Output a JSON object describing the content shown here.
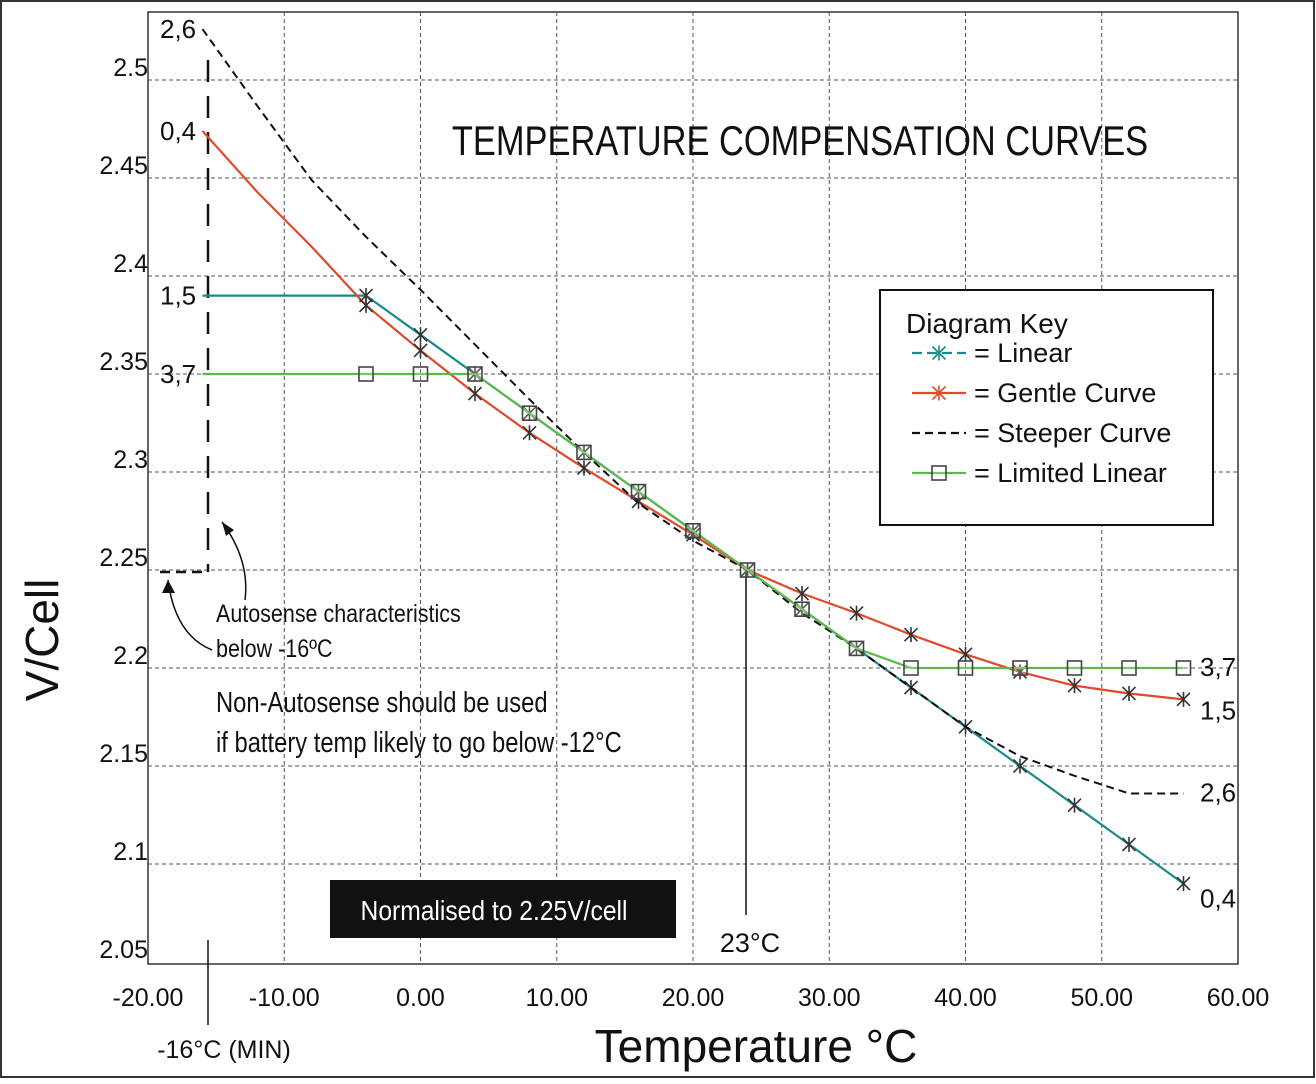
{
  "chart_data": {
    "type": "line",
    "title": "TEMPERATURE COMPENSATION CURVES",
    "xlabel": "Temperature °C",
    "ylabel": "V/Cell",
    "xlim": [
      -20,
      60
    ],
    "ylim": [
      2.05,
      2.52
    ],
    "grid": true,
    "legend_placement": "right",
    "x_ticks": [
      "-20.00",
      "-10.00",
      "0.00",
      "10.00",
      "20.00",
      "30.00",
      "40.00",
      "50.00",
      "60.00"
    ],
    "y_ticks": [
      "2.05",
      "2.1",
      "2.15",
      "2.2",
      "2.25",
      "2.3",
      "2.35",
      "2.4",
      "2.45",
      "2.5"
    ],
    "legend": {
      "title": "Diagram Key",
      "entries": [
        "= Linear",
        "= Gentle Curve",
        "= Steeper Curve",
        "= Limited Linear"
      ]
    },
    "series": [
      {
        "name": "Linear",
        "color": "#1a8a8a",
        "marker": "asterisk",
        "start_label": "1,5",
        "end_label": "0,4",
        "x": [
          -16,
          -4,
          0,
          4,
          8,
          12,
          16,
          20,
          24,
          28,
          32,
          36,
          40,
          44,
          48,
          52,
          56
        ],
        "y": [
          2.39,
          2.39,
          2.37,
          2.35,
          2.33,
          2.31,
          2.29,
          2.27,
          2.25,
          2.23,
          2.21,
          2.19,
          2.17,
          2.15,
          2.13,
          2.11,
          2.09
        ],
        "marker_from_index": 1
      },
      {
        "name": "Gentle Curve",
        "color": "#e04a2c",
        "marker": "asterisk",
        "start_label": "0,4",
        "end_label": "1,5",
        "x": [
          -16,
          -12,
          -8,
          -4,
          0,
          4,
          8,
          12,
          16,
          20,
          24,
          28,
          32,
          36,
          40,
          44,
          48,
          52,
          56
        ],
        "y": [
          2.474,
          2.443,
          2.415,
          2.385,
          2.362,
          2.34,
          2.32,
          2.302,
          2.285,
          2.268,
          2.25,
          2.238,
          2.228,
          2.217,
          2.207,
          2.198,
          2.191,
          2.187,
          2.184
        ],
        "marker_from_index": 3
      },
      {
        "name": "Steeper Curve",
        "color": "#111111",
        "marker": "none",
        "dashed": true,
        "start_label": "2,6",
        "end_label": "2,6",
        "x": [
          -16,
          -12,
          -8,
          -4,
          0,
          4,
          8,
          12,
          16,
          20,
          24,
          28,
          32,
          36,
          40,
          44,
          48,
          52,
          56
        ],
        "y": [
          2.526,
          2.487,
          2.449,
          2.42,
          2.393,
          2.365,
          2.337,
          2.31,
          2.284,
          2.265,
          2.25,
          2.228,
          2.21,
          2.19,
          2.17,
          2.155,
          2.145,
          2.136,
          2.136
        ]
      },
      {
        "name": "Limited Linear",
        "color": "#5cb84a",
        "marker": "square",
        "start_label": "3,7",
        "end_label": "3,7",
        "x": [
          -16,
          -4,
          0,
          4,
          8,
          12,
          16,
          20,
          24,
          28,
          32,
          36,
          40,
          44,
          48,
          52,
          56
        ],
        "y": [
          2.35,
          2.35,
          2.35,
          2.35,
          2.33,
          2.31,
          2.29,
          2.27,
          2.25,
          2.23,
          2.21,
          2.2,
          2.2,
          2.2,
          2.2,
          2.2,
          2.2
        ],
        "marker_from_index": 1
      }
    ],
    "annotations": {
      "autosense_line1": "Autosense characteristics",
      "autosense_line2": "below  -16ºC",
      "non_autosense_line1": "Non-Autosense should be used",
      "non_autosense_line2": "if battery temp likely to go below -12°C",
      "normalised_box": "Normalised to 2.25V/cell",
      "ref_temp_label": "23°C",
      "min_temp_label": "-16°C (MIN)"
    }
  }
}
